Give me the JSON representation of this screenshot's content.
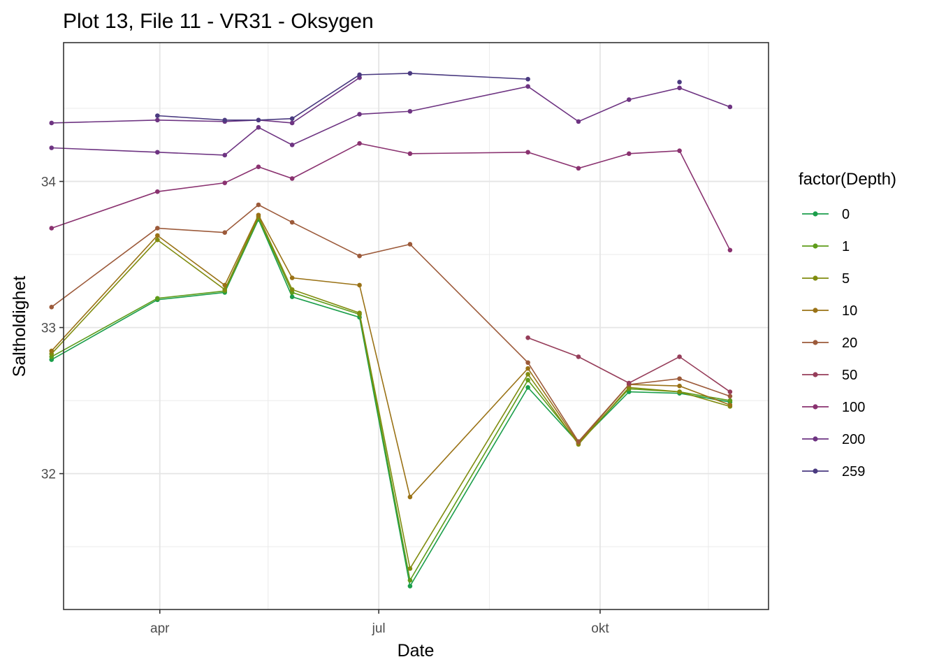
{
  "chart_data": {
    "type": "line",
    "title": "Plot 13, File 11 - VR31  -  Oksygen",
    "xlabel": "Date",
    "ylabel": "Saltholdighet",
    "x_axis_kind": "date",
    "xlim": [
      "2017-02-20",
      "2017-12-10"
    ],
    "ylim": [
      31.07,
      34.95
    ],
    "x_ticks": [
      {
        "date": "2017-04-01",
        "label": "apr"
      },
      {
        "date": "2017-07-01",
        "label": "jul"
      },
      {
        "date": "2017-10-01",
        "label": "okt"
      }
    ],
    "y_ticks": [
      32,
      33,
      34
    ],
    "grid": true,
    "legend": {
      "title": "factor(Depth)",
      "position": "right"
    },
    "dates": [
      "2017-02-15",
      "2017-03-31",
      "2017-04-28",
      "2017-05-12",
      "2017-05-26",
      "2017-06-23",
      "2017-07-14",
      "2017-09-01",
      "2017-09-22",
      "2017-10-13",
      "2017-11-03",
      "2017-11-24"
    ],
    "series": [
      {
        "name": "0",
        "color": "#1b9e4b",
        "values": [
          32.78,
          33.19,
          33.24,
          33.74,
          33.21,
          33.07,
          31.23,
          32.59,
          32.21,
          32.56,
          32.55,
          32.49
        ]
      },
      {
        "name": "1",
        "color": "#5e9c1a",
        "values": [
          32.8,
          33.2,
          33.25,
          33.75,
          33.24,
          33.09,
          31.27,
          32.64,
          32.21,
          32.58,
          32.56,
          32.5
        ]
      },
      {
        "name": "5",
        "color": "#808c0f",
        "values": [
          32.82,
          33.6,
          33.26,
          33.76,
          33.26,
          33.1,
          31.35,
          32.68,
          32.2,
          32.59,
          32.56,
          32.46
        ]
      },
      {
        "name": "10",
        "color": "#9a7216",
        "values": [
          32.84,
          33.63,
          33.29,
          33.77,
          33.34,
          33.29,
          31.84,
          32.72,
          32.21,
          32.61,
          32.6,
          32.47
        ]
      },
      {
        "name": "20",
        "color": "#9c5a3a",
        "values": [
          33.14,
          33.68,
          33.65,
          33.84,
          33.72,
          33.49,
          33.57,
          32.76,
          32.22,
          32.61,
          32.65,
          32.53
        ]
      },
      {
        "name": "50",
        "color": "#963d5a",
        "values": [
          null,
          null,
          null,
          null,
          null,
          null,
          null,
          32.93,
          32.8,
          32.62,
          32.8,
          32.56
        ]
      },
      {
        "name": "100",
        "color": "#8a3270",
        "values": [
          33.68,
          33.93,
          33.99,
          34.1,
          34.02,
          34.26,
          34.19,
          34.2,
          34.09,
          34.19,
          34.21,
          33.53
        ]
      },
      {
        "name": "200",
        "color": "#6e3482",
        "values": [
          34.23,
          34.2,
          34.18,
          34.37,
          34.25,
          34.46,
          34.48,
          34.65,
          34.41,
          34.56,
          34.64,
          34.51
        ]
      },
      {
        "name": "259",
        "color": "#4a3a80",
        "values": [
          null,
          34.45,
          34.42,
          34.42,
          34.43,
          34.73,
          34.74,
          34.7,
          null,
          null,
          34.68,
          null
        ]
      }
    ],
    "extra_segments": [
      {
        "series": "50",
        "dates": [
          "2017-02-15",
          "2017-03-31",
          "2017-04-28",
          "2017-05-12",
          "2017-05-26",
          "2017-06-23",
          "2017-07-14"
        ],
        "values": [
          null,
          null,
          null,
          null,
          null,
          null,
          null
        ]
      },
      {
        "series": "200",
        "dates": [
          "2017-02-15",
          "2017-03-31",
          "2017-04-28",
          "2017-05-12",
          "2017-05-26",
          "2017-06-23"
        ],
        "values": [
          34.4,
          34.42,
          34.41,
          34.42,
          34.4,
          34.71
        ]
      }
    ]
  }
}
